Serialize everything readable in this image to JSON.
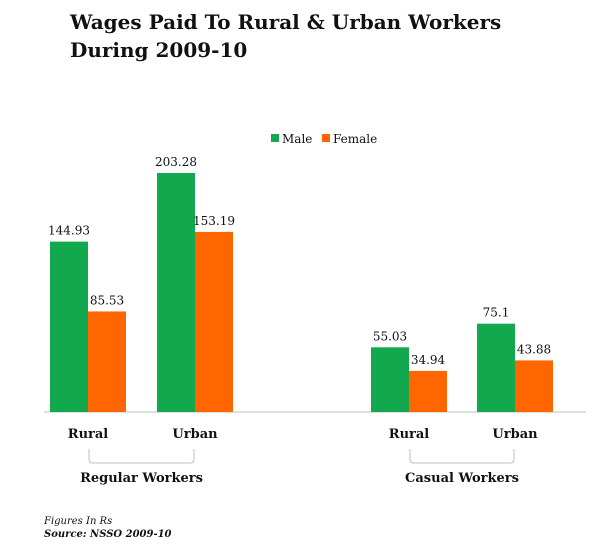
{
  "title_lines": [
    "Wages Paid To  Rural & Urban Workers",
    "During 2009-10"
  ],
  "colors": {
    "male": "#12a84e",
    "female": "#ff6600",
    "axis": "#bfbfbf",
    "bracket": "#bfbfbf"
  },
  "chart_data": {
    "type": "bar",
    "title": "Wages Paid To  Rural & Urban Workers During 2009-10",
    "legend_position": "top-center",
    "grid": false,
    "categories": [
      "Rural",
      "Urban",
      "Rural",
      "Urban"
    ],
    "groups": [
      {
        "label": "Regular Workers",
        "categories": [
          "Rural",
          "Urban"
        ]
      },
      {
        "label": "Casual Workers",
        "categories": [
          "Rural",
          "Urban"
        ]
      }
    ],
    "series": [
      {
        "name": "Male",
        "values": [
          144.93,
          203.28,
          55.03,
          75.1
        ],
        "labels": [
          "144.93",
          "203.28",
          "55.03",
          "75.1"
        ]
      },
      {
        "name": "Female",
        "values": [
          85.53,
          153.19,
          34.94,
          43.88
        ],
        "labels": [
          "85.53",
          "153.19",
          "34.94",
          "43.88"
        ]
      }
    ]
  },
  "footnotes": {
    "units": "Figures In Rs",
    "source": "Source: NSSO 2009-10"
  }
}
